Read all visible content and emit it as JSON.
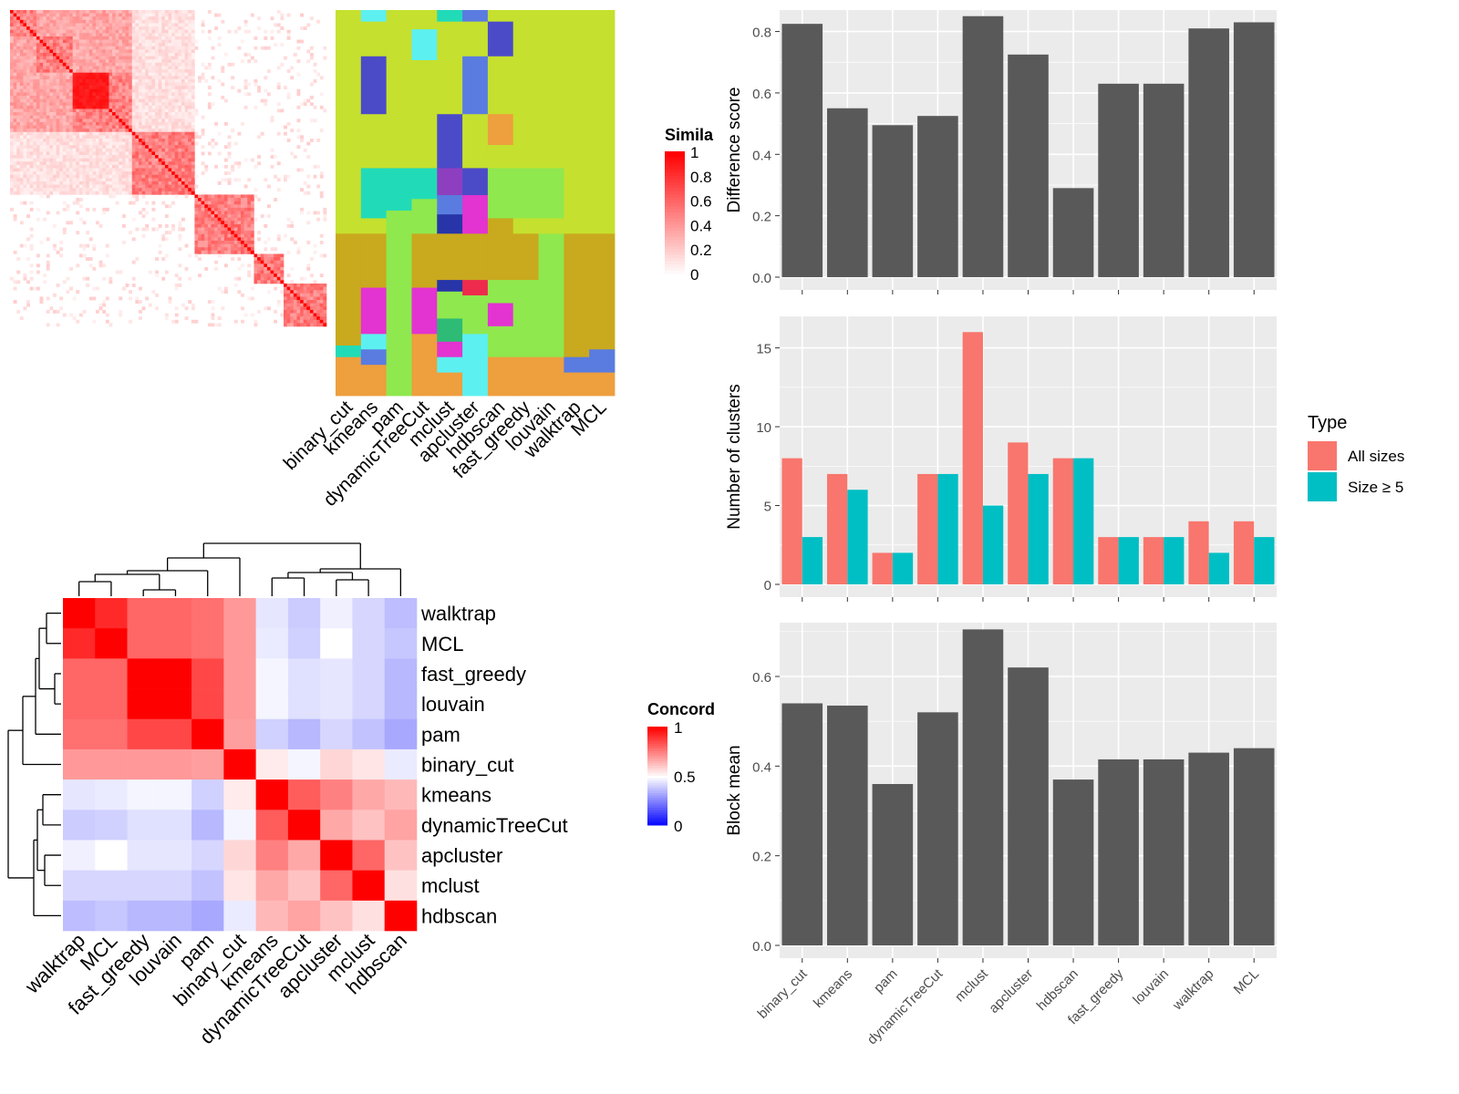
{
  "method_order": [
    "binary_cut",
    "kmeans",
    "pam",
    "dynamicTreeCut",
    "mclust",
    "apcluster",
    "hdbscan",
    "fast_greedy",
    "louvain",
    "walktrap",
    "MCL"
  ],
  "similarity_heatmap": {
    "legend_title": "Simila",
    "legend_ticks": [
      "1",
      "0.8",
      "0.6",
      "0.4",
      "0.2",
      "0"
    ],
    "colors": {
      "high": "#ff0000",
      "low": "#ffffff"
    }
  },
  "cluster_palette": [
    "#c5e02e",
    "#5df0f0",
    "#21dbb8",
    "#5a7ce0",
    "#4b4bc8",
    "#ee9f3e",
    "#8fe84e",
    "#c9a91e",
    "#e333d0",
    "#2735a8",
    "#ee2b4c",
    "#8d3fc0",
    "#2dbb75"
  ],
  "concordance_heatmap": {
    "legend_title": "Concord",
    "legend_ticks": [
      "1",
      "0.5",
      "0"
    ],
    "row_labels": [
      "walktrap",
      "MCL",
      "fast_greedy",
      "louvain",
      "pam",
      "binary_cut",
      "kmeans",
      "dynamicTreeCut",
      "apcluster",
      "mclust",
      "hdbscan"
    ],
    "col_labels": [
      "walktrap",
      "MCL",
      "fast_greedy",
      "louvain",
      "pam",
      "binary_cut",
      "kmeans",
      "dynamicTreeCut",
      "apcluster",
      "mclust",
      "hdbscan"
    ],
    "colors": {
      "high": "#ff0000",
      "mid": "#ffffff",
      "low": "#0000ff"
    },
    "matrix": [
      [
        1.0,
        0.92,
        0.8,
        0.8,
        0.78,
        0.7,
        0.45,
        0.4,
        0.47,
        0.42,
        0.37
      ],
      [
        0.92,
        1.0,
        0.8,
        0.8,
        0.78,
        0.7,
        0.46,
        0.41,
        0.5,
        0.42,
        0.39
      ],
      [
        0.8,
        0.8,
        1.0,
        1.0,
        0.86,
        0.7,
        0.48,
        0.44,
        0.45,
        0.42,
        0.36
      ],
      [
        0.8,
        0.8,
        1.0,
        1.0,
        0.86,
        0.7,
        0.48,
        0.44,
        0.45,
        0.42,
        0.36
      ],
      [
        0.78,
        0.78,
        0.86,
        0.86,
        1.0,
        0.69,
        0.41,
        0.36,
        0.42,
        0.38,
        0.33
      ],
      [
        0.7,
        0.7,
        0.7,
        0.7,
        0.69,
        1.0,
        0.54,
        0.48,
        0.58,
        0.55,
        0.46
      ],
      [
        0.45,
        0.46,
        0.48,
        0.48,
        0.41,
        0.54,
        1.0,
        0.82,
        0.75,
        0.67,
        0.64
      ],
      [
        0.4,
        0.41,
        0.44,
        0.44,
        0.36,
        0.48,
        0.82,
        1.0,
        0.67,
        0.62,
        0.68
      ],
      [
        0.47,
        0.5,
        0.45,
        0.45,
        0.42,
        0.58,
        0.75,
        0.67,
        1.0,
        0.8,
        0.62
      ],
      [
        0.42,
        0.42,
        0.42,
        0.42,
        0.38,
        0.55,
        0.67,
        0.62,
        0.8,
        1.0,
        0.56
      ],
      [
        0.37,
        0.39,
        0.36,
        0.36,
        0.33,
        0.46,
        0.64,
        0.68,
        0.62,
        0.56,
        1.0
      ]
    ]
  },
  "chart_data": [
    {
      "type": "bar",
      "categories": [
        "binary_cut",
        "kmeans",
        "pam",
        "dynamicTreeCut",
        "mclust",
        "apcluster",
        "hdbscan",
        "fast_greedy",
        "louvain",
        "walktrap",
        "MCL"
      ],
      "values": [
        0.825,
        0.55,
        0.495,
        0.525,
        0.85,
        0.725,
        0.29,
        0.63,
        0.63,
        0.81,
        0.83
      ],
      "ylabel": "Difference score",
      "ylim": [
        0,
        0.87
      ],
      "yticks": [
        "0.0",
        "0.2",
        "0.4",
        "0.6",
        "0.8"
      ],
      "grid": true,
      "bar_color": "#595959"
    },
    {
      "type": "bar",
      "categories": [
        "binary_cut",
        "kmeans",
        "pam",
        "dynamicTreeCut",
        "mclust",
        "apcluster",
        "hdbscan",
        "fast_greedy",
        "louvain",
        "walktrap",
        "MCL"
      ],
      "series": [
        {
          "name": "All sizes",
          "values": [
            8,
            7,
            2,
            7,
            16,
            9,
            8,
            3,
            3,
            4,
            4
          ],
          "color": "#f8766d"
        },
        {
          "name": "Size ≥ 5",
          "values": [
            3,
            6,
            2,
            7,
            5,
            7,
            8,
            3,
            3,
            2,
            3
          ],
          "color": "#00bfc4"
        }
      ],
      "ylabel": "Number of clusters",
      "ylim": [
        0,
        17
      ],
      "yticks": [
        "0",
        "5",
        "10",
        "15"
      ],
      "legend_title": "Type",
      "legend_position": "right",
      "grid": true
    },
    {
      "type": "bar",
      "categories": [
        "binary_cut",
        "kmeans",
        "pam",
        "dynamicTreeCut",
        "mclust",
        "apcluster",
        "hdbscan",
        "fast_greedy",
        "louvain",
        "walktrap",
        "MCL"
      ],
      "values": [
        0.54,
        0.535,
        0.36,
        0.52,
        0.705,
        0.62,
        0.37,
        0.415,
        0.415,
        0.43,
        0.44
      ],
      "ylabel": "Block mean",
      "ylim": [
        0,
        0.72
      ],
      "yticks": [
        "0.0",
        "0.2",
        "0.4",
        "0.6"
      ],
      "grid": true,
      "bar_color": "#595959"
    }
  ]
}
